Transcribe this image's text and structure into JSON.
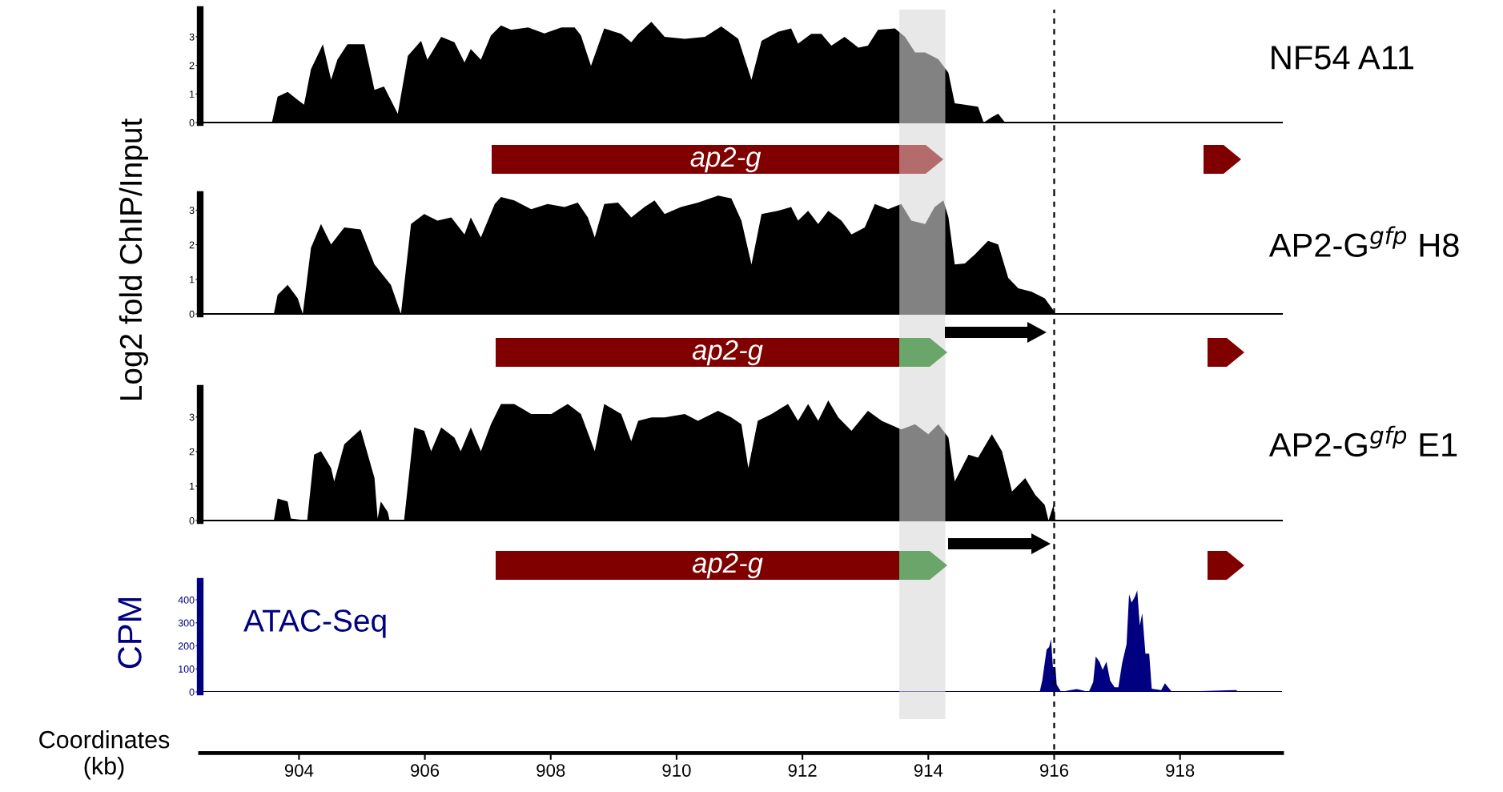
{
  "chart_data": [
    {
      "type": "area",
      "title": "NF54 A11",
      "annotations": [
        "ap2-g"
      ],
      "xlim": [
        902.43,
        919.62
      ],
      "ylim": [
        0,
        3.95
      ],
      "yticks": [
        0,
        1,
        2,
        3
      ],
      "tick_labels": "y",
      "series": [
        {
          "color": "#000000",
          "x": [
            902.74,
            903.57,
            903.66,
            903.82,
            903.98,
            904.08,
            904.19,
            904.38,
            904.51,
            904.61,
            904.77,
            905.04,
            905.2,
            905.35,
            905.57,
            905.73,
            905.94,
            906.04,
            906.26,
            906.47,
            906.63,
            906.73,
            906.89,
            907.05,
            907.21,
            907.37,
            907.64,
            907.9,
            908.17,
            908.38,
            908.48,
            908.64,
            908.85,
            909.12,
            909.28,
            909.39,
            909.6,
            909.81,
            910.13,
            910.45,
            910.71,
            910.98,
            911.19,
            911.35,
            911.61,
            911.82,
            911.93,
            912.14,
            912.3,
            912.46,
            912.67,
            912.89,
            913.04,
            913.2,
            913.47,
            913.63,
            913.79,
            913.95,
            914.16,
            914.32,
            914.42,
            914.58,
            914.79,
            914.88,
            915.01,
            915.11,
            915.22,
            919.29
          ],
          "values": [
            0,
            0,
            0.9,
            1.07,
            0.79,
            0.62,
            1.86,
            2.74,
            1.5,
            2.2,
            2.74,
            2.74,
            1.14,
            1.26,
            0.31,
            2.33,
            2.86,
            2.2,
            3.0,
            2.81,
            2.1,
            2.57,
            2.2,
            3.05,
            3.4,
            3.24,
            3.33,
            3.12,
            3.33,
            3.33,
            3.05,
            1.98,
            3.29,
            3.1,
            2.81,
            3.1,
            3.52,
            3.0,
            2.93,
            3.0,
            3.36,
            2.93,
            1.5,
            2.86,
            3.17,
            3.29,
            2.76,
            3.1,
            3.1,
            2.69,
            3.0,
            2.62,
            2.69,
            3.24,
            3.29,
            3.0,
            2.45,
            2.45,
            2.21,
            1.74,
            0.67,
            0.62,
            0.55,
            0,
            0.19,
            0.31,
            0,
            0
          ]
        }
      ],
      "bands": [
        {
          "axis": "x",
          "from": 913.54,
          "to": 914.27,
          "color": "#d9d9d9"
        }
      ],
      "ref_lines": [
        {
          "axis": "x",
          "value": 916.0,
          "color": "#000000",
          "line_style": "dashed"
        }
      ]
    },
    {
      "type": "area",
      "title": "AP2-G$^{gfp}$ H8",
      "ylabel": "Log2 fold ChIP/Input",
      "annotations": [
        "ap2-g"
      ],
      "xlim": [
        902.43,
        919.62
      ],
      "ylim": [
        0,
        3.45
      ],
      "yticks": [
        0,
        1,
        2,
        3
      ],
      "tick_labels": "y",
      "series": [
        {
          "color": "#000000",
          "x": [
            902.74,
            903.6,
            903.66,
            903.82,
            903.98,
            904.06,
            904.19,
            904.35,
            904.51,
            904.72,
            904.98,
            905.2,
            905.46,
            905.62,
            905.78,
            905.99,
            906.2,
            906.42,
            906.63,
            906.73,
            906.89,
            907.11,
            907.21,
            907.42,
            907.69,
            907.95,
            908.22,
            908.43,
            908.59,
            908.7,
            908.85,
            909.07,
            909.28,
            909.49,
            909.65,
            909.81,
            910.07,
            910.34,
            910.66,
            910.87,
            911.03,
            911.19,
            911.35,
            911.61,
            911.82,
            911.93,
            912.09,
            912.25,
            912.41,
            912.62,
            912.78,
            912.99,
            913.15,
            913.36,
            913.57,
            913.73,
            913.95,
            914.1,
            914.24,
            914.32,
            914.42,
            914.58,
            914.74,
            914.95,
            915.11,
            915.27,
            915.43,
            915.64,
            915.85,
            915.99,
            916.02,
            919.08
          ],
          "values": [
            0,
            0,
            0.55,
            0.84,
            0.45,
            0,
            1.91,
            2.6,
            2.01,
            2.5,
            2.44,
            1.43,
            0.84,
            0,
            2.6,
            2.89,
            2.7,
            2.79,
            2.3,
            2.79,
            2.21,
            3.18,
            3.38,
            3.28,
            3.03,
            3.18,
            3.09,
            3.22,
            2.79,
            2.21,
            3.18,
            3.22,
            2.79,
            3.09,
            3.28,
            2.89,
            3.09,
            3.22,
            3.42,
            3.34,
            2.7,
            1.43,
            2.89,
            2.98,
            3.09,
            2.7,
            2.98,
            2.6,
            2.98,
            2.7,
            2.3,
            2.5,
            3.18,
            3.03,
            3.18,
            2.7,
            2.6,
            3.09,
            3.28,
            2.79,
            1.43,
            1.46,
            1.72,
            2.11,
            2.01,
            1.04,
            0.74,
            0.64,
            0.45,
            0.1,
            0,
            0
          ]
        }
      ],
      "bands": [
        {
          "axis": "x",
          "from": 913.54,
          "to": 914.27,
          "color": "#d9d9d9"
        }
      ],
      "ref_lines": [
        {
          "axis": "x",
          "value": 916.0,
          "color": "#000000",
          "line_style": "dashed"
        }
      ]
    },
    {
      "type": "area",
      "title": "AP2-G$^{gfp}$ E1",
      "annotations": [
        "ap2-g"
      ],
      "xlim": [
        902.43,
        919.62
      ],
      "ylim": [
        0,
        3.83
      ],
      "yticks": [
        0,
        1,
        2,
        3
      ],
      "tick_labels": "y",
      "series": [
        {
          "color": "#000000",
          "x": [
            902.74,
            903.6,
            903.66,
            903.82,
            903.87,
            904.13,
            904.24,
            904.35,
            904.51,
            904.56,
            904.72,
            904.98,
            905.2,
            905.25,
            905.3,
            905.41,
            905.44,
            905.67,
            905.83,
            905.99,
            906.1,
            906.26,
            906.47,
            906.57,
            906.73,
            906.89,
            907.05,
            907.21,
            907.42,
            907.69,
            908.01,
            908.27,
            908.48,
            908.7,
            908.85,
            909.12,
            909.28,
            909.39,
            909.6,
            909.81,
            910.13,
            910.34,
            910.66,
            910.87,
            911.03,
            911.14,
            911.29,
            911.51,
            911.77,
            911.93,
            912.09,
            912.25,
            912.41,
            912.57,
            912.78,
            913.04,
            913.26,
            913.57,
            913.79,
            914.0,
            914.16,
            914.32,
            914.42,
            914.64,
            914.79,
            915.01,
            915.17,
            915.33,
            915.54,
            915.7,
            915.85,
            915.91,
            915.99,
            916.02,
            919.08
          ],
          "values": [
            0,
            0,
            0.64,
            0.55,
            0.06,
            0,
            1.91,
            2.01,
            1.52,
            1.13,
            2.21,
            2.64,
            1.23,
            0.06,
            0.55,
            0.25,
            0,
            0,
            2.7,
            2.6,
            2.01,
            2.7,
            2.4,
            2.01,
            2.7,
            2.01,
            2.79,
            3.38,
            3.38,
            3.09,
            3.09,
            3.38,
            3.09,
            2.01,
            3.38,
            3.09,
            2.3,
            2.89,
            2.99,
            2.99,
            3.09,
            2.89,
            3.18,
            2.99,
            2.79,
            1.52,
            2.89,
            3.09,
            3.38,
            2.89,
            3.38,
            2.89,
            3.48,
            2.99,
            2.6,
            3.18,
            2.89,
            2.64,
            2.79,
            2.5,
            2.79,
            2.4,
            1.13,
            1.91,
            1.82,
            2.5,
            2.01,
            0.84,
            1.23,
            0.74,
            0.45,
            0,
            0.45,
            0,
            0
          ]
        }
      ],
      "bands": [
        {
          "axis": "x",
          "from": 913.54,
          "to": 914.27,
          "color": "#d9d9d9"
        }
      ],
      "ref_lines": [
        {
          "axis": "x",
          "value": 916.0,
          "color": "#000000",
          "line_style": "dashed"
        }
      ]
    },
    {
      "type": "area",
      "ylabel": "CPM",
      "xlabel": "Coordinates\n(kb)",
      "annotations": [
        "ATAC-Seq"
      ],
      "xlim": [
        902.43,
        919.62
      ],
      "ylim": [
        0,
        480
      ],
      "yticks": [
        0,
        100,
        200,
        300,
        400
      ],
      "xticks": [
        904,
        906,
        908,
        910,
        912,
        914,
        916,
        918
      ],
      "series": [
        {
          "color": "#000080",
          "x": [
            902.74,
            915.77,
            915.81,
            915.88,
            915.92,
            915.95,
            915.98,
            916.02,
            916.04,
            916.11,
            916.26,
            916.36,
            916.55,
            916.62,
            916.66,
            916.72,
            916.77,
            916.83,
            916.89,
            916.96,
            917.02,
            917.08,
            917.15,
            917.19,
            917.23,
            917.28,
            917.32,
            917.36,
            917.4,
            917.45,
            917.51,
            917.55,
            917.7,
            917.76,
            917.87,
            918.89,
            918.93,
            919.25
          ],
          "values": [
            0,
            0,
            49,
            184,
            195,
            230,
            108,
            108,
            32,
            0,
            8,
            12,
            0,
            43,
            154,
            131,
            96,
            131,
            49,
            20,
            20,
            125,
            207,
            424,
            388,
            412,
            441,
            289,
            342,
            166,
            166,
            14,
            8,
            37,
            0,
            8,
            0,
            0
          ]
        }
      ],
      "bands": [
        {
          "axis": "x",
          "from": 913.54,
          "to": 914.27,
          "color": "#d9d9d9"
        }
      ],
      "ref_lines": [
        {
          "axis": "x",
          "value": 916.0,
          "color": "#000000",
          "line_style": "dashed"
        }
      ]
    }
  ]
}
